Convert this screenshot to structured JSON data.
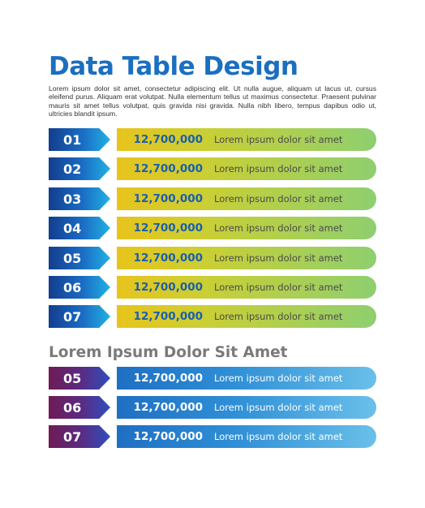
{
  "title": "Data Table Design",
  "intro": "Lorem ipsum dolor sit amet, consectetur adipiscing elit. Ut nulla augue, aliquam ut lacus ut, cursus eleifend purus. Aliquam erat volutpat. Nulla elementum tellus ut maximus consectetur. Praesent pulvinar mauris sit amet tellus volutpat, quis gravida nisi gravida. Nulla nibh libero, tempus dapibus odio ut, ultricies blandit ipsum.",
  "section_title": "Lorem Ipsum Dolor Sit Amet",
  "colors": {
    "title": "#1a6fc0",
    "section_title": "#7a7a7a",
    "table1_badge": [
      "#133d8e",
      "#22b1e4"
    ],
    "table1_bar": [
      "#e8c41c",
      "#8ecf70"
    ],
    "table2_badge": [
      "#6e1b55",
      "#2e4dbd"
    ],
    "table2_bar": [
      "#1f6fc3",
      "#6ac0ea"
    ]
  },
  "table1": [
    {
      "num": "01",
      "value": "12,700,000",
      "text": "Lorem ipsum dolor sit amet"
    },
    {
      "num": "02",
      "value": "12,700,000",
      "text": "Lorem ipsum dolor sit amet"
    },
    {
      "num": "03",
      "value": "12,700,000",
      "text": "Lorem ipsum dolor sit amet"
    },
    {
      "num": "04",
      "value": "12,700,000",
      "text": "Lorem ipsum dolor sit amet"
    },
    {
      "num": "05",
      "value": "12,700,000",
      "text": "Lorem ipsum dolor sit amet"
    },
    {
      "num": "06",
      "value": "12,700,000",
      "text": "Lorem ipsum dolor sit amet"
    },
    {
      "num": "07",
      "value": "12,700,000",
      "text": "Lorem ipsum dolor sit amet"
    }
  ],
  "table2": [
    {
      "num": "05",
      "value": "12,700,000",
      "text": "Lorem ipsum dolor sit amet"
    },
    {
      "num": "06",
      "value": "12,700,000",
      "text": "Lorem ipsum dolor sit amet"
    },
    {
      "num": "07",
      "value": "12,700,000",
      "text": "Lorem ipsum dolor sit amet"
    }
  ]
}
